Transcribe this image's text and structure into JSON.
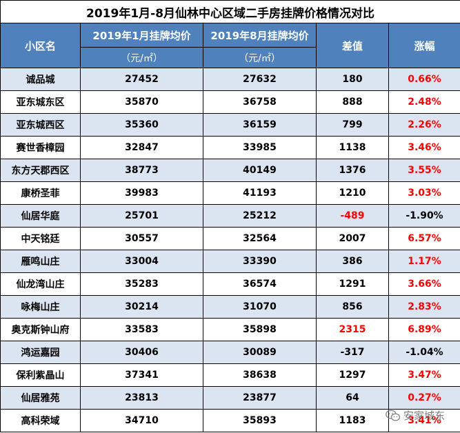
{
  "title": "2019年1月-8月仙林中心区域二手房挂牌价格情况对比",
  "headers": {
    "name": "小区名",
    "jan": "2019年1月挂牌均价",
    "aug": "2019年8月挂牌均价",
    "unit": "（元/㎡）",
    "diff": "差值",
    "rise": "涨幅"
  },
  "rows": [
    {
      "name": "诚品城",
      "jan": "27452",
      "aug": "27632",
      "diff": "180",
      "rise": "0.66%"
    },
    {
      "name": "亚东城东区",
      "jan": "35870",
      "aug": "36758",
      "diff": "888",
      "rise": "2.48%"
    },
    {
      "name": "亚东城西区",
      "jan": "35360",
      "aug": "36159",
      "diff": "799",
      "rise": "2.26%"
    },
    {
      "name": "赛世香樟园",
      "jan": "32847",
      "aug": "33985",
      "diff": "1138",
      "rise": "3.46%"
    },
    {
      "name": "东方天郡西区",
      "jan": "38773",
      "aug": "40149",
      "diff": "1376",
      "rise": "3.55%"
    },
    {
      "name": "康桥圣菲",
      "jan": "39983",
      "aug": "41193",
      "diff": "1210",
      "rise": "3.03%"
    },
    {
      "name": "仙居华庭",
      "jan": "25701",
      "aug": "25212",
      "diff": "-489",
      "rise": "-1.90%"
    },
    {
      "name": "中天铭廷",
      "jan": "30557",
      "aug": "32564",
      "diff": "2007",
      "rise": "6.57%"
    },
    {
      "name": "雁鸣山庄",
      "jan": "33004",
      "aug": "33390",
      "diff": "386",
      "rise": "1.17%"
    },
    {
      "name": "仙龙湾山庄",
      "jan": "35283",
      "aug": "36574",
      "diff": "1291",
      "rise": "3.66%"
    },
    {
      "name": "咏梅山庄",
      "jan": "30214",
      "aug": "31070",
      "diff": "856",
      "rise": "2.83%"
    },
    {
      "name": "奥克斯钟山府",
      "jan": "33583",
      "aug": "35898",
      "diff": "2315",
      "rise": "6.89%"
    },
    {
      "name": "鸿运嘉园",
      "jan": "30406",
      "aug": "30089",
      "diff": "-317",
      "rise": "-1.04%"
    },
    {
      "name": "保利紫晶山",
      "jan": "37341",
      "aug": "38638",
      "diff": "1297",
      "rise": "3.47%"
    },
    {
      "name": "仙居雅苑",
      "jan": "23813",
      "aug": "23877",
      "diff": "64",
      "rise": "0.27%"
    },
    {
      "name": "高科荣域",
      "jan": "34710",
      "aug": "35893",
      "diff": "1183",
      "rise": "3.41%"
    }
  ],
  "highlight": {
    "diff_red_rows": [
      6,
      11
    ],
    "rise_black_rows": [
      6,
      12
    ]
  },
  "colors": {
    "header_bg": "#4f81bd",
    "row_shade": "#dbe5f1",
    "row_plain": "#ffffff",
    "accent_red": "#ff0000"
  },
  "watermark": {
    "icon": "wechat-icon",
    "text": "安家城东"
  }
}
